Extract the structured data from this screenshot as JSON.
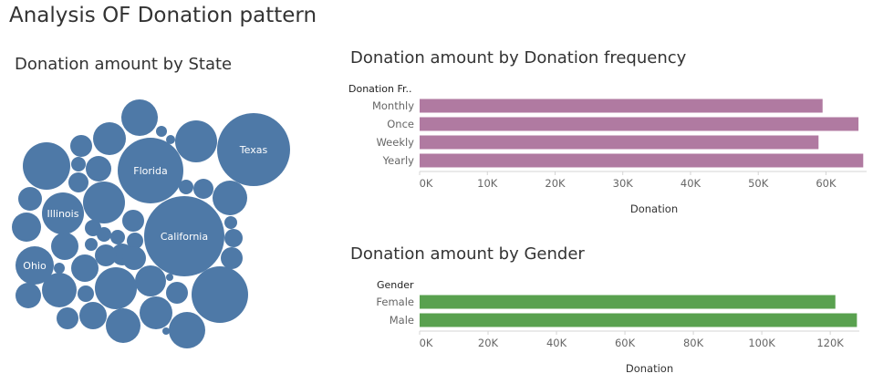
{
  "dashboard": {
    "title": "Analysis OF Donation pattern"
  },
  "colors": {
    "bubble": "#4e79a7",
    "frequency_bar": "#b07aa1",
    "gender_bar": "#59a14f",
    "axis_line": "#d4d4d4"
  },
  "chart_data": [
    {
      "type": "bubble",
      "title": "Donation amount by State",
      "labeled": [
        "Texas",
        "Florida",
        "Illinois",
        "California",
        "Ohio"
      ]
    },
    {
      "type": "bar",
      "orientation": "horizontal",
      "title": "Donation amount by Donation frequency",
      "row_header": "Donation Fr..",
      "categories": [
        "Monthly",
        "Once",
        "Weekly",
        "Yearly"
      ],
      "values": [
        59500,
        64800,
        58900,
        65500
      ],
      "xlabel": "Donation",
      "xlim": [
        0,
        66000
      ],
      "ticks": [
        0,
        10000,
        20000,
        30000,
        40000,
        50000,
        60000
      ],
      "tick_labels": [
        "0K",
        "10K",
        "20K",
        "30K",
        "40K",
        "50K",
        "60K"
      ]
    },
    {
      "type": "bar",
      "orientation": "horizontal",
      "title": "Donation amount by Gender",
      "row_header": "Gender",
      "categories": [
        "Female",
        "Male"
      ],
      "values": [
        121500,
        127800
      ],
      "xlabel": "Donation",
      "xlim": [
        0,
        128500
      ],
      "ticks": [
        0,
        20000,
        40000,
        60000,
        80000,
        100000,
        120000
      ],
      "tick_labels": [
        "0K",
        "20K",
        "40K",
        "60K",
        "80K",
        "100K",
        "120K"
      ]
    }
  ]
}
